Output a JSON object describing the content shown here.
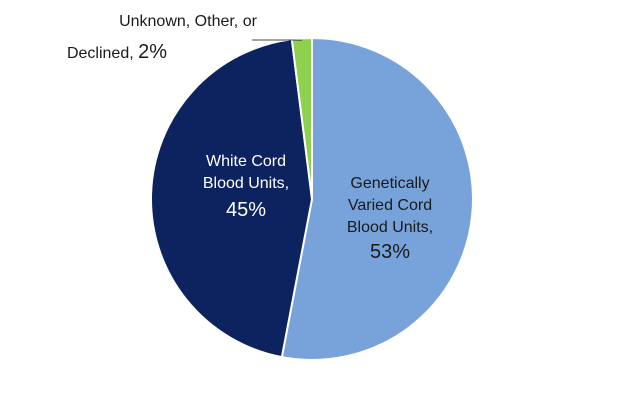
{
  "chart_data": {
    "type": "pie",
    "title": "",
    "slices": [
      {
        "name": "Genetically Varied Cord Blood Units",
        "label_lines": [
          "Genetically",
          "Varied Cord",
          "Blood Units,"
        ],
        "value": 53,
        "value_label": "53%",
        "color": "#77A3DA"
      },
      {
        "name": "White Cord Blood Units",
        "label_lines": [
          "White Cord",
          "Blood Units,"
        ],
        "value": 45,
        "value_label": "45%",
        "color": "#0D2360"
      },
      {
        "name": "Unknown, Other, or Declined",
        "label_lines": [
          "Unknown, Other, or",
          "Declined,"
        ],
        "value": 2,
        "value_label": "2%",
        "color": "#8ED14F"
      }
    ],
    "start": "12 o'clock",
    "direction": "clockwise",
    "legend": "none"
  }
}
